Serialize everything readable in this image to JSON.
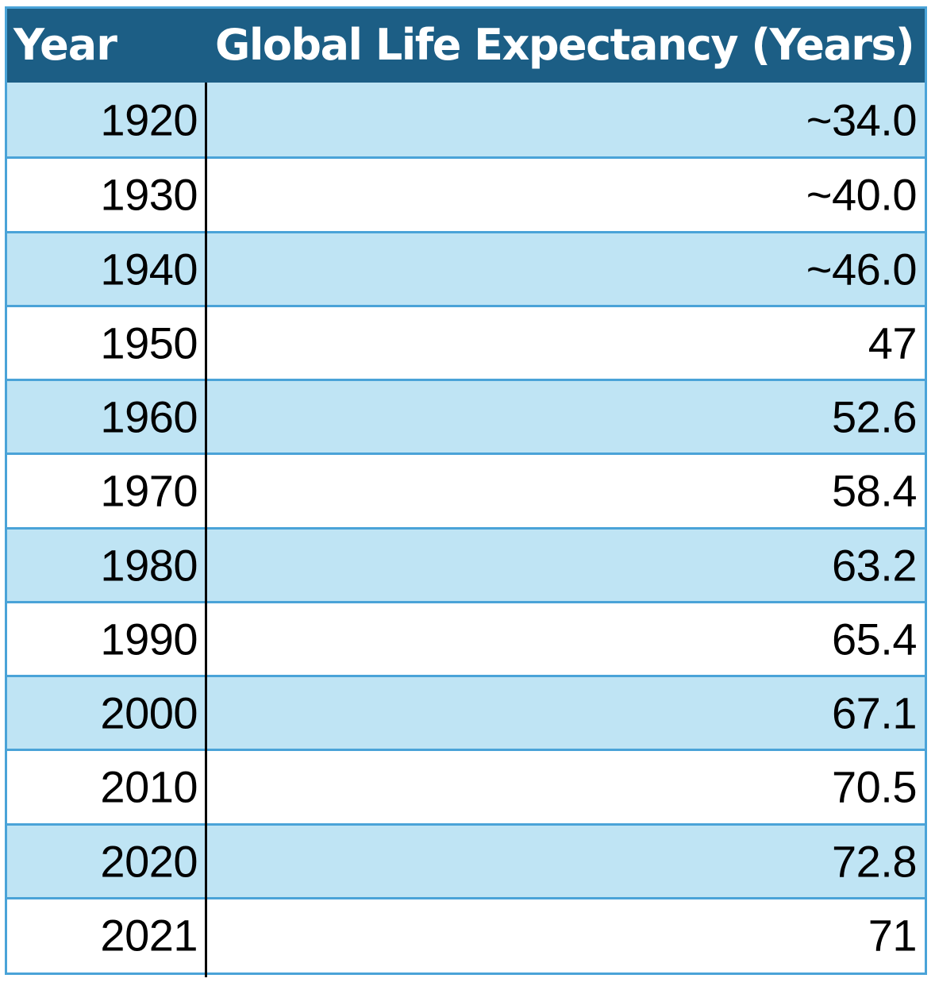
{
  "table": {
    "headers": {
      "year": "Year",
      "value": "Global Life Expectancy (Years)"
    },
    "rows": [
      {
        "year": "1920",
        "value": "~34.0"
      },
      {
        "year": "1930",
        "value": "~40.0"
      },
      {
        "year": "1940",
        "value": "~46.0"
      },
      {
        "year": "1950",
        "value": "47"
      },
      {
        "year": "1960",
        "value": "52.6"
      },
      {
        "year": "1970",
        "value": "58.4"
      },
      {
        "year": "1980",
        "value": "63.2"
      },
      {
        "year": "1990",
        "value": "65.4"
      },
      {
        "year": "2000",
        "value": "67.1"
      },
      {
        "year": "2010",
        "value": "70.5"
      },
      {
        "year": "2020",
        "value": "72.8"
      },
      {
        "year": "2021",
        "value": "71"
      }
    ]
  },
  "colors": {
    "header_bg": "#1c5e85",
    "header_text": "#ffffff",
    "band_shaded": "#bfe4f4",
    "band_plain": "#ffffff",
    "grid_lines": "#4aa3d8",
    "divider": "#000000"
  }
}
